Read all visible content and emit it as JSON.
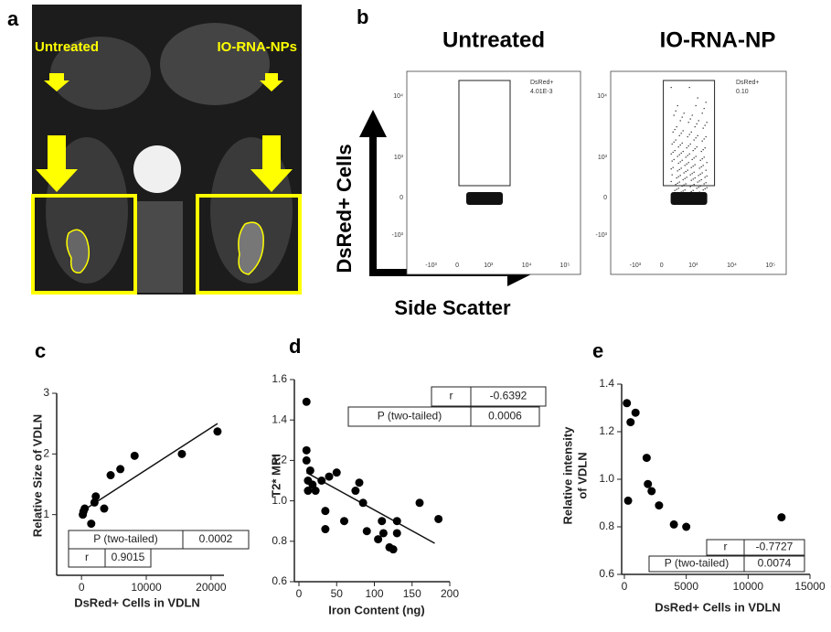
{
  "panel_a": {
    "label": "a",
    "left_label": "Untreated",
    "right_label": "IO-RNA-NPs"
  },
  "panel_b": {
    "label": "b",
    "titles": [
      "Untreated",
      "IO-RNA-NP"
    ],
    "y_axis": "DsRed+ Cells",
    "x_axis": "Side Scatter",
    "plots": [
      {
        "gate_name": "DsRed+",
        "gate_value": "4.01E-3"
      },
      {
        "gate_name": "DsRed+",
        "gate_value": "0.10"
      }
    ],
    "yticks": [
      "10⁴",
      "10³",
      "0",
      "-10³"
    ],
    "xticks": [
      "-10³",
      "0",
      "10³",
      "10⁴",
      "10⁵"
    ]
  },
  "chart_data": [
    {
      "type": "scatter",
      "panel_label": "c",
      "y_label": [
        "Relative Size of VDLN"
      ],
      "x_label": "DsRed+ Cells in VDLN",
      "x": [
        200,
        300,
        500,
        1500,
        2000,
        2200,
        3500,
        4500,
        6000,
        8200,
        15500,
        21000
      ],
      "values": [
        1.0,
        1.05,
        1.1,
        0.85,
        1.2,
        1.3,
        1.1,
        1.65,
        1.75,
        1.97,
        2.0,
        2.37
      ],
      "color": "#000000",
      "fit": {
        "x": [
          0,
          21000
        ],
        "values": [
          1.05,
          2.5
        ]
      },
      "xlim": [
        -2000,
        22000
      ],
      "ylim": [
        0,
        3
      ],
      "xticks": [
        0,
        10000,
        20000
      ],
      "yticks": [
        1,
        2,
        3
      ],
      "stats_table": [
        [
          "P (two-tailed)",
          "0.0002"
        ],
        [
          "r",
          "0.9015"
        ]
      ]
    },
    {
      "type": "scatter",
      "panel_label": "d",
      "y_label": [
        "T2* MRI"
      ],
      "x_label": "Iron Content (ng)",
      "x": [
        10,
        10,
        10,
        12,
        12,
        15,
        18,
        22,
        30,
        35,
        35,
        40,
        50,
        60,
        75,
        80,
        85,
        90,
        105,
        110,
        112,
        120,
        125,
        130,
        130,
        160,
        185
      ],
      "values": [
        1.49,
        1.25,
        1.2,
        1.1,
        1.05,
        1.15,
        1.08,
        1.05,
        1.1,
        0.95,
        0.86,
        1.12,
        1.14,
        0.9,
        1.05,
        1.09,
        0.99,
        0.85,
        0.81,
        0.9,
        0.84,
        0.77,
        0.76,
        0.84,
        0.9,
        0.99,
        0.91
      ],
      "color": "#000000",
      "fit": {
        "x": [
          10,
          180
        ],
        "values": [
          1.14,
          0.79
        ]
      },
      "xlim": [
        0,
        200
      ],
      "ylim": [
        0.6,
        1.6
      ],
      "xticks": [
        0,
        50,
        100,
        150,
        200
      ],
      "yticks": [
        {
          "value": 0.6,
          "label": "0.6"
        },
        {
          "value": 0.8,
          "label": "0.8"
        },
        {
          "value": 1.0,
          "label": "1.0"
        },
        {
          "value": 1.2,
          "label": "1.2"
        },
        {
          "value": 1.4,
          "label": "1.4"
        },
        {
          "value": 1.6,
          "label": "1.6"
        }
      ],
      "stats_table": [
        [
          "r",
          "-0.6392"
        ],
        [
          "P (two-tailed)",
          "0.0006"
        ]
      ]
    },
    {
      "type": "scatter",
      "panel_label": "e",
      "y_label": [
        "Relative intensity",
        "of VDLN"
      ],
      "x_label": "DsRed+ Cells in VDLN",
      "x": [
        200,
        300,
        500,
        900,
        1800,
        1900,
        2200,
        2800,
        4000,
        5000,
        12700
      ],
      "values": [
        1.32,
        0.91,
        1.24,
        1.28,
        1.09,
        0.98,
        0.95,
        0.89,
        0.81,
        0.8,
        0.84
      ],
      "color": "#000000",
      "xlim": [
        0,
        15000
      ],
      "ylim": [
        0.6,
        1.4
      ],
      "xticks": [
        0,
        5000,
        10000,
        15000
      ],
      "yticks": [
        {
          "value": 0.6,
          "label": "0.6"
        },
        {
          "value": 0.8,
          "label": "0.8"
        },
        {
          "value": 1.0,
          "label": "1.0"
        },
        {
          "value": 1.2,
          "label": "1.2"
        },
        {
          "value": 1.4,
          "label": "1.4"
        }
      ],
      "stats_table": [
        [
          "r",
          "-0.7727"
        ],
        [
          "P (two-tailed)",
          "0.0074"
        ]
      ]
    }
  ]
}
